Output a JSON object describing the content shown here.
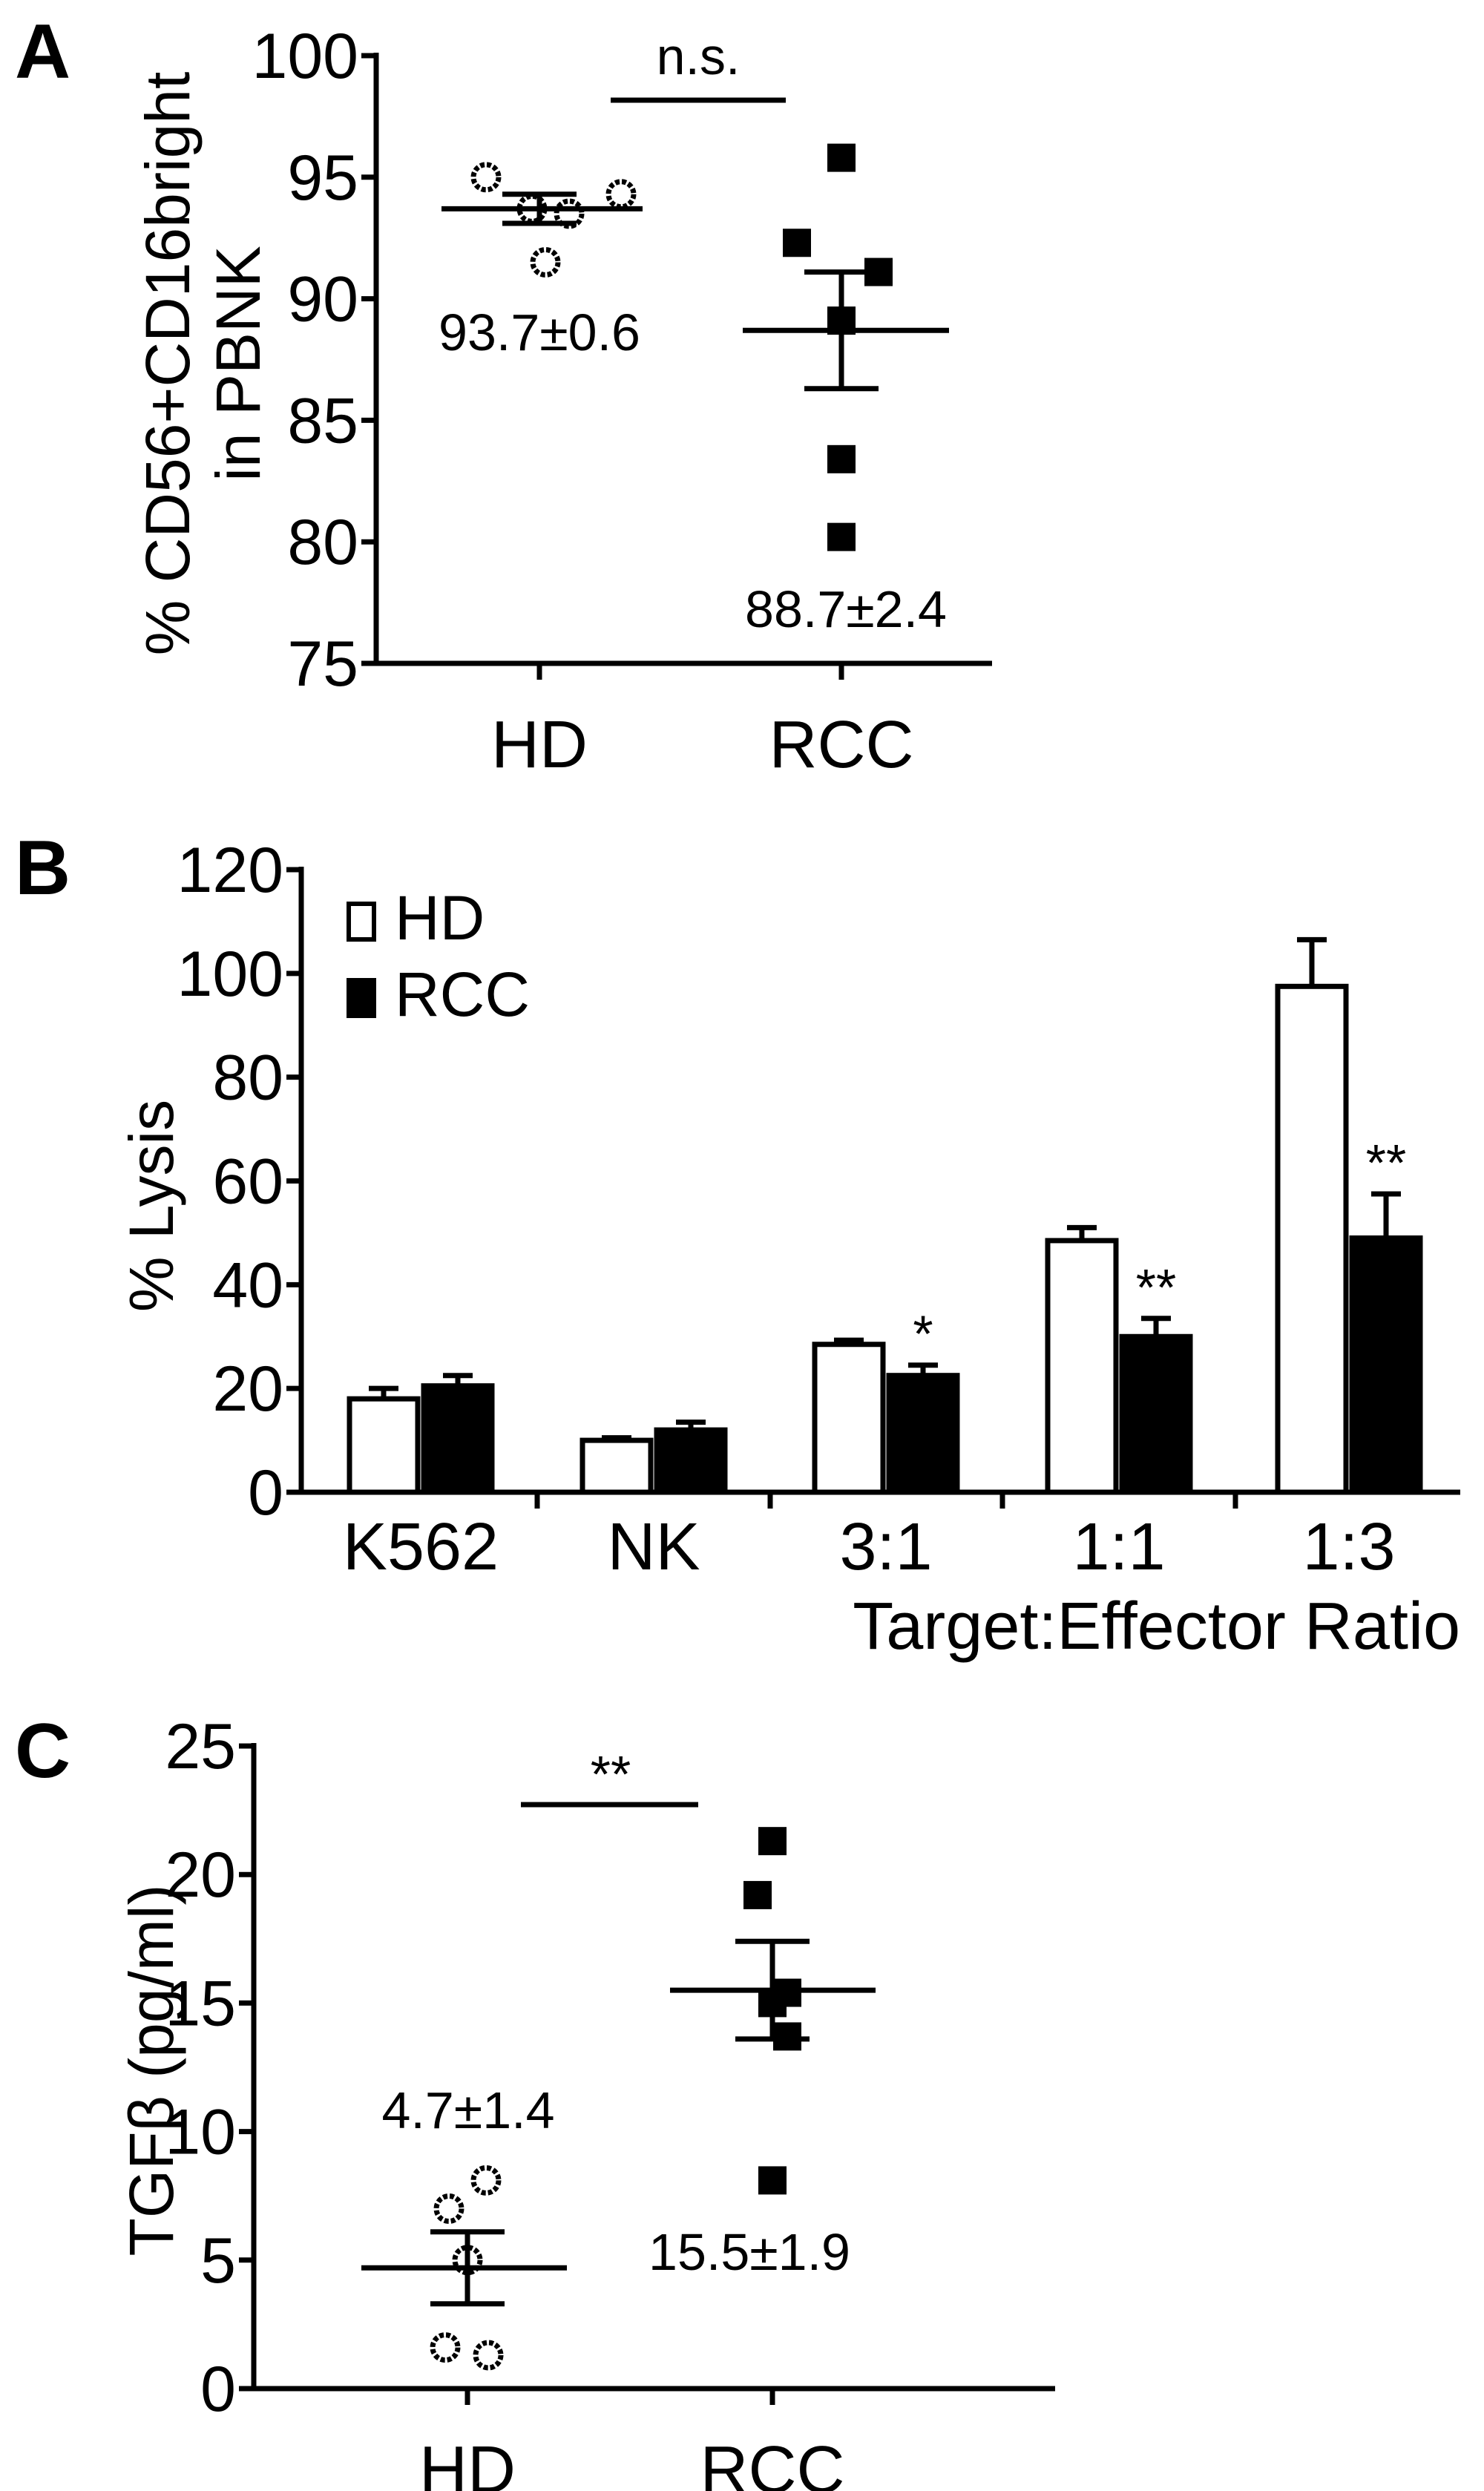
{
  "chart_data": [
    {
      "panel": "A",
      "type": "scatter",
      "ylabel_lines": [
        "% CD56+CD16bright",
        "in PBNK"
      ],
      "ylim": [
        75,
        100
      ],
      "yticks": [
        75,
        80,
        85,
        90,
        95,
        100
      ],
      "categories": [
        "HD",
        "RCC"
      ],
      "series": [
        {
          "category": "HD",
          "marker": "open-circle",
          "values": [
            95.0,
            94.3,
            93.7,
            93.5,
            91.5
          ],
          "mean": 93.7,
          "sem": 0.6,
          "label": "93.7±0.6"
        },
        {
          "category": "RCC",
          "marker": "filled-square",
          "values": [
            95.8,
            92.3,
            91.1,
            89.1,
            83.4,
            80.2
          ],
          "mean": 88.7,
          "sem": 2.4,
          "label": "88.7±2.4"
        }
      ],
      "significance": "n.s."
    },
    {
      "panel": "B",
      "type": "bar",
      "ylabel": "% Lysis",
      "xlabel": "Target:Effector Ratio",
      "ylim": [
        0,
        120
      ],
      "yticks": [
        0,
        20,
        40,
        60,
        80,
        100,
        120
      ],
      "categories": [
        "K562",
        "NK",
        "3:1",
        "1:1",
        "1:3"
      ],
      "legend": {
        "position": "top-left"
      },
      "series": [
        {
          "name": "HD",
          "color": "#ffffff",
          "values": [
            18,
            10,
            28.5,
            48.5,
            97.5
          ],
          "errors": [
            2,
            0.5,
            0.8,
            2.5,
            9
          ]
        },
        {
          "name": "RCC",
          "color": "#000000",
          "values": [
            20.5,
            12,
            22.5,
            30,
            49
          ],
          "errors": [
            2,
            1.5,
            2,
            3.5,
            8.5
          ]
        }
      ],
      "significance": [
        "",
        "",
        "*",
        "**",
        "**"
      ]
    },
    {
      "panel": "C",
      "type": "scatter",
      "ylabel": "TGFβ (pg/ml)",
      "ylim": [
        0,
        25
      ],
      "yticks": [
        0,
        5,
        10,
        15,
        20,
        25
      ],
      "categories": [
        "HD",
        "RCC"
      ],
      "series": [
        {
          "category": "HD",
          "marker": "open-circle",
          "values": [
            8.1,
            7.0,
            5.0,
            1.6,
            1.3
          ],
          "mean": 4.7,
          "sem": 1.4,
          "label": "4.7±1.4"
        },
        {
          "category": "RCC",
          "marker": "filled-square",
          "values": [
            21.3,
            19.2,
            15.4,
            15.0,
            13.7,
            8.1
          ],
          "mean": 15.5,
          "sem": 1.9,
          "label": "15.5±1.9"
        }
      ],
      "significance": "**"
    }
  ]
}
